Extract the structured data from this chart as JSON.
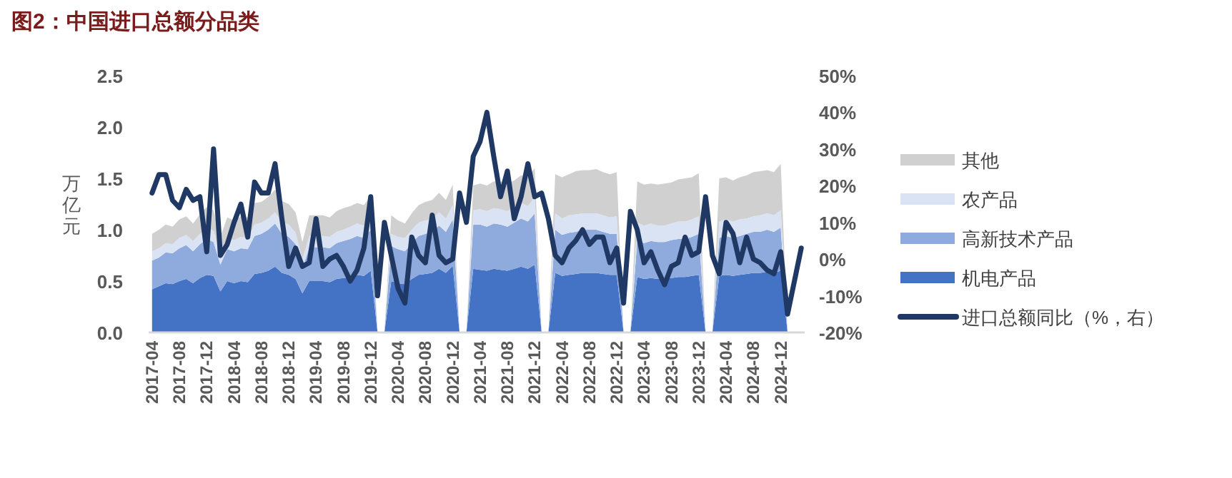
{
  "chart_data": {
    "type": "area",
    "title": "图2：中国进口总额分品类",
    "ylabel": "万亿元",
    "stacked": true,
    "legend": "right",
    "categories": [
      "2017-04",
      null,
      null,
      null,
      "2017-08",
      null,
      null,
      null,
      "2017-12",
      null,
      null,
      null,
      "2018-04",
      null,
      null,
      null,
      "2018-08",
      null,
      null,
      null,
      "2018-12",
      null,
      null,
      null,
      "2019-04",
      null,
      null,
      null,
      "2019-08",
      null,
      null,
      null,
      "2019-12",
      null,
      null,
      null,
      "2020-04",
      null,
      null,
      null,
      "2020-08",
      null,
      null,
      null,
      "2020-12",
      null,
      null,
      null,
      "2021-04",
      null,
      null,
      null,
      "2021-08",
      null,
      null,
      null,
      "2021-12",
      null,
      null,
      null,
      "2022-04",
      null,
      null,
      null,
      "2022-08",
      null,
      null,
      null,
      "2022-12",
      null,
      null,
      null,
      "2023-04",
      null,
      null,
      null,
      "2023-08",
      null,
      null,
      null,
      "2023-12",
      null,
      null,
      null,
      "2024-04",
      null,
      null,
      null,
      "2024-08",
      null,
      null,
      null,
      "2024-12",
      null,
      null,
      null
    ],
    "ylim": [
      0,
      2.5
    ],
    "yticks": [
      {
        "value": 0,
        "label": "0.0"
      },
      0.5,
      {
        "value": 1,
        "label": "1.0"
      },
      1.5,
      {
        "value": 2,
        "label": "2.0"
      },
      2.5
    ],
    "y2lim": [
      -20,
      50
    ],
    "y2ticks": [
      {
        "value": -20,
        "label": "-20%"
      },
      {
        "value": -10,
        "label": "-10%"
      },
      {
        "value": 0,
        "label": "0%"
      },
      {
        "value": 10,
        "label": "10%"
      },
      {
        "value": 20,
        "label": "20%"
      },
      {
        "value": 30,
        "label": "30%"
      },
      {
        "value": 40,
        "label": "40%"
      },
      {
        "value": 50,
        "label": "50%"
      }
    ],
    "series": [
      {
        "name": "机电产品",
        "color": "#4472c4",
        "values": [
          0.42,
          0.45,
          0.48,
          0.47,
          0.5,
          0.52,
          0.48,
          0.53,
          0.56,
          0.55,
          0.4,
          0.5,
          0.48,
          0.5,
          0.49,
          0.57,
          0.58,
          0.6,
          0.64,
          0.58,
          0.56,
          0.52,
          0.38,
          0.5,
          0.5,
          0.5,
          0.49,
          0.52,
          0.53,
          0.54,
          0.56,
          0.55,
          0.6,
          0,
          0,
          0.5,
          0.48,
          0.47,
          0.52,
          0.56,
          0.57,
          0.58,
          0.62,
          0.58,
          0.65,
          0,
          0,
          0.62,
          0.61,
          0.6,
          0.62,
          0.61,
          0.6,
          0.62,
          0.64,
          0.62,
          0.66,
          0,
          0,
          0.58,
          0.55,
          0.56,
          0.57,
          0.58,
          0.58,
          0.58,
          0.57,
          0.56,
          0.56,
          0,
          0,
          0.54,
          0.52,
          0.53,
          0.52,
          0.52,
          0.53,
          0.54,
          0.54,
          0.55,
          0.56,
          0,
          0,
          0.55,
          0.56,
          0.55,
          0.56,
          0.57,
          0.58,
          0.58,
          0.59,
          0.58,
          0.6,
          0,
          null,
          null
        ]
      },
      {
        "name": "高新技术产品",
        "color": "#8faadc",
        "values": [
          0.28,
          0.28,
          0.3,
          0.3,
          0.32,
          0.33,
          0.31,
          0.33,
          0.35,
          0.33,
          0.26,
          0.31,
          0.31,
          0.32,
          0.32,
          0.37,
          0.38,
          0.4,
          0.42,
          0.38,
          0.37,
          0.34,
          0.24,
          0.33,
          0.33,
          0.33,
          0.33,
          0.35,
          0.36,
          0.37,
          0.38,
          0.37,
          0.4,
          0,
          0,
          0.34,
          0.33,
          0.32,
          0.35,
          0.38,
          0.39,
          0.4,
          0.42,
          0.4,
          0.45,
          0,
          0,
          0.43,
          0.44,
          0.43,
          0.44,
          0.44,
          0.43,
          0.45,
          0.47,
          0.46,
          0.5,
          0,
          0,
          0.42,
          0.4,
          0.41,
          0.41,
          0.42,
          0.42,
          0.42,
          0.41,
          0.4,
          0.4,
          0,
          0,
          0.36,
          0.35,
          0.36,
          0.36,
          0.36,
          0.37,
          0.37,
          0.37,
          0.38,
          0.4,
          0,
          0,
          0.37,
          0.38,
          0.37,
          0.38,
          0.39,
          0.4,
          0.4,
          0.41,
          0.4,
          0.42,
          0,
          null,
          null
        ]
      },
      {
        "name": "农产品",
        "color": "#dae3f3",
        "values": [
          0.09,
          0.09,
          0.09,
          0.09,
          0.1,
          0.1,
          0.1,
          0.1,
          0.11,
          0.11,
          0.09,
          0.11,
          0.11,
          0.11,
          0.11,
          0.11,
          0.11,
          0.11,
          0.11,
          0.11,
          0.12,
          0.11,
          0.09,
          0.11,
          0.11,
          0.11,
          0.11,
          0.11,
          0.11,
          0.12,
          0.12,
          0.12,
          0.12,
          0,
          0,
          0.12,
          0.12,
          0.13,
          0.13,
          0.13,
          0.13,
          0.13,
          0.13,
          0.13,
          0.14,
          0,
          0,
          0.14,
          0.15,
          0.15,
          0.15,
          0.15,
          0.15,
          0.15,
          0.15,
          0.15,
          0.16,
          0,
          0,
          0.16,
          0.16,
          0.17,
          0.17,
          0.16,
          0.16,
          0.16,
          0.16,
          0.16,
          0.17,
          0,
          0,
          0.17,
          0.17,
          0.17,
          0.16,
          0.16,
          0.16,
          0.17,
          0.17,
          0.17,
          0.17,
          0,
          0,
          0.16,
          0.16,
          0.16,
          0.16,
          0.15,
          0.15,
          0.16,
          0.16,
          0.16,
          0.17,
          0,
          null,
          null
        ]
      },
      {
        "name": "其他",
        "color": "#d0d0d0",
        "values": [
          0.17,
          0.18,
          0.18,
          0.17,
          0.18,
          0.18,
          0.17,
          0.19,
          0.2,
          0.2,
          0.18,
          0.2,
          0.19,
          0.2,
          0.2,
          0.21,
          0.2,
          0.21,
          0.22,
          0.21,
          0.2,
          0.2,
          0.17,
          0.2,
          0.2,
          0.2,
          0.19,
          0.2,
          0.21,
          0.2,
          0.2,
          0.2,
          0.21,
          0,
          0,
          0.18,
          0.16,
          0.14,
          0.16,
          0.17,
          0.18,
          0.18,
          0.19,
          0.18,
          0.2,
          0,
          0,
          0.24,
          0.25,
          0.25,
          0.26,
          0.27,
          0.27,
          0.26,
          0.27,
          0.28,
          0.28,
          0,
          0,
          0.38,
          0.4,
          0.4,
          0.42,
          0.42,
          0.42,
          0.43,
          0.42,
          0.42,
          0.43,
          0,
          0,
          0.4,
          0.4,
          0.39,
          0.4,
          0.41,
          0.4,
          0.41,
          0.42,
          0.41,
          0.42,
          0,
          0,
          0.42,
          0.41,
          0.4,
          0.41,
          0.42,
          0.43,
          0.43,
          0.42,
          0.42,
          0.45,
          0,
          null,
          null
        ]
      },
      {
        "name": "进口总额同比（%，右）",
        "type": "line",
        "axis": "y2",
        "color": "#1f3864",
        "values": [
          18,
          23,
          23,
          16,
          14,
          19,
          16,
          17,
          2,
          30,
          1,
          4,
          10,
          15,
          6,
          21,
          18,
          18,
          26,
          11,
          -2,
          3,
          -2,
          -1,
          11,
          -2,
          0,
          1,
          -2,
          -6,
          -3,
          3,
          17,
          -10,
          10,
          1,
          -8,
          -12,
          6,
          1,
          -1,
          12,
          1,
          -1,
          0,
          18,
          10,
          28,
          32,
          40,
          28,
          17,
          24,
          11,
          17,
          26,
          17,
          18,
          11,
          1,
          -1,
          3,
          5,
          8,
          4,
          6,
          6,
          -1,
          3,
          -12,
          13,
          8,
          -1,
          2,
          -3,
          -7,
          -2,
          -1,
          6,
          1,
          2,
          17,
          1,
          -4,
          10,
          7,
          -1,
          6,
          0,
          -1,
          -3,
          -4,
          2,
          -15,
          -6,
          3
        ]
      }
    ]
  }
}
